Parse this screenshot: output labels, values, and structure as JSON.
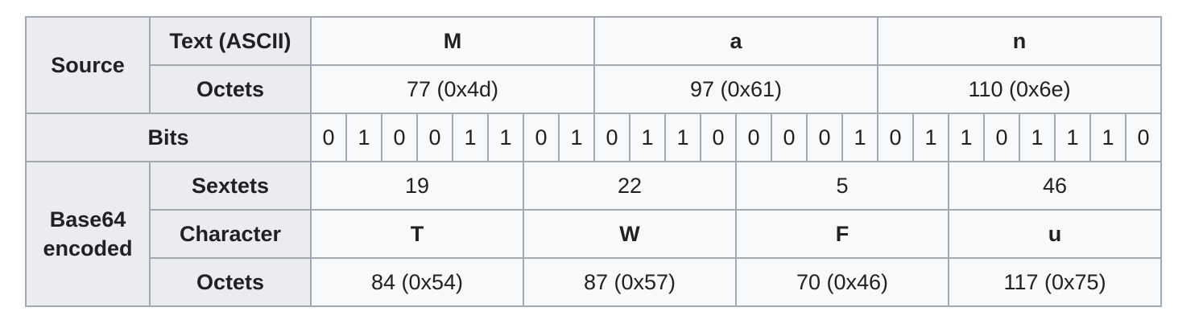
{
  "row_headers": {
    "source": "Source",
    "text_ascii": "Text (ASCII)",
    "octets_source": "Octets",
    "bits": "Bits",
    "base64_line1": "Base64",
    "base64_line2": "encoded",
    "sextets": "Sextets",
    "character": "Character",
    "octets_encoded": "Octets"
  },
  "source": {
    "chars": [
      "M",
      "a",
      "n"
    ],
    "octets": [
      "77 (0x4d)",
      "97 (0x61)",
      "110 (0x6e)"
    ]
  },
  "bits": [
    "0",
    "1",
    "0",
    "0",
    "1",
    "1",
    "0",
    "1",
    "0",
    "1",
    "1",
    "0",
    "0",
    "0",
    "0",
    "1",
    "0",
    "1",
    "1",
    "0",
    "1",
    "1",
    "1",
    "0"
  ],
  "encoded": {
    "sextets": [
      "19",
      "22",
      "5",
      "46"
    ],
    "chars": [
      "T",
      "W",
      "F",
      "u"
    ],
    "octets": [
      "84 (0x54)",
      "87 (0x57)",
      "70 (0x46)",
      "117 (0x75)"
    ]
  },
  "colors": {
    "header_bg": "#eaecf0",
    "cell_bg": "#f8f9fa",
    "border": "#a2a9b1",
    "text": "#202122"
  }
}
